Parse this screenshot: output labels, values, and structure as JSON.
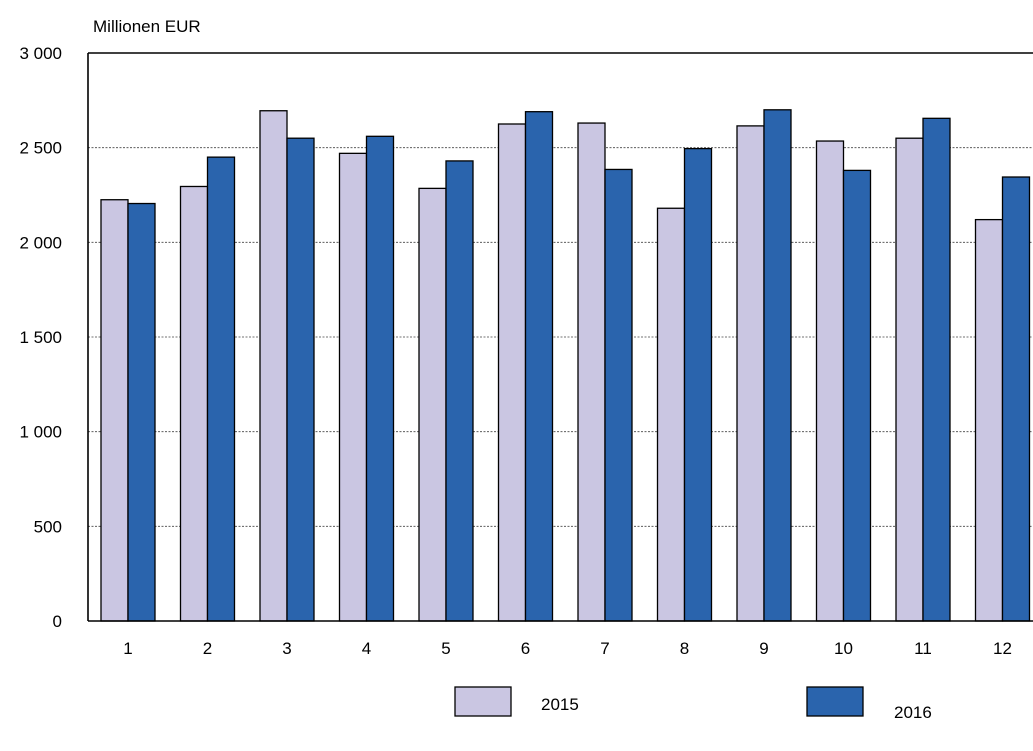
{
  "chart_data": {
    "type": "bar",
    "title": "",
    "xlabel": "",
    "ylabel": "Millionen EUR",
    "ylim": [
      0,
      3000
    ],
    "yticks": [
      0,
      500,
      1000,
      1500,
      2000,
      2500,
      3000
    ],
    "ytick_labels": [
      "0",
      "500",
      "1 000",
      "1 500",
      "2 000",
      "2 500",
      "3 000"
    ],
    "grid": true,
    "legend_position": "bottom",
    "categories": [
      "1",
      "2",
      "3",
      "4",
      "5",
      "6",
      "7",
      "8",
      "9",
      "10",
      "11",
      "12"
    ],
    "series": [
      {
        "name": "2015",
        "color": "#cac6e2",
        "values": [
          2225,
          2295,
          2695,
          2470,
          2285,
          2625,
          2630,
          2180,
          2615,
          2535,
          2550,
          2120
        ]
      },
      {
        "name": "2016",
        "color": "#2a64ad",
        "values": [
          2205,
          2450,
          2550,
          2560,
          2430,
          2690,
          2385,
          2495,
          2700,
          2380,
          2655,
          2345
        ]
      }
    ]
  }
}
